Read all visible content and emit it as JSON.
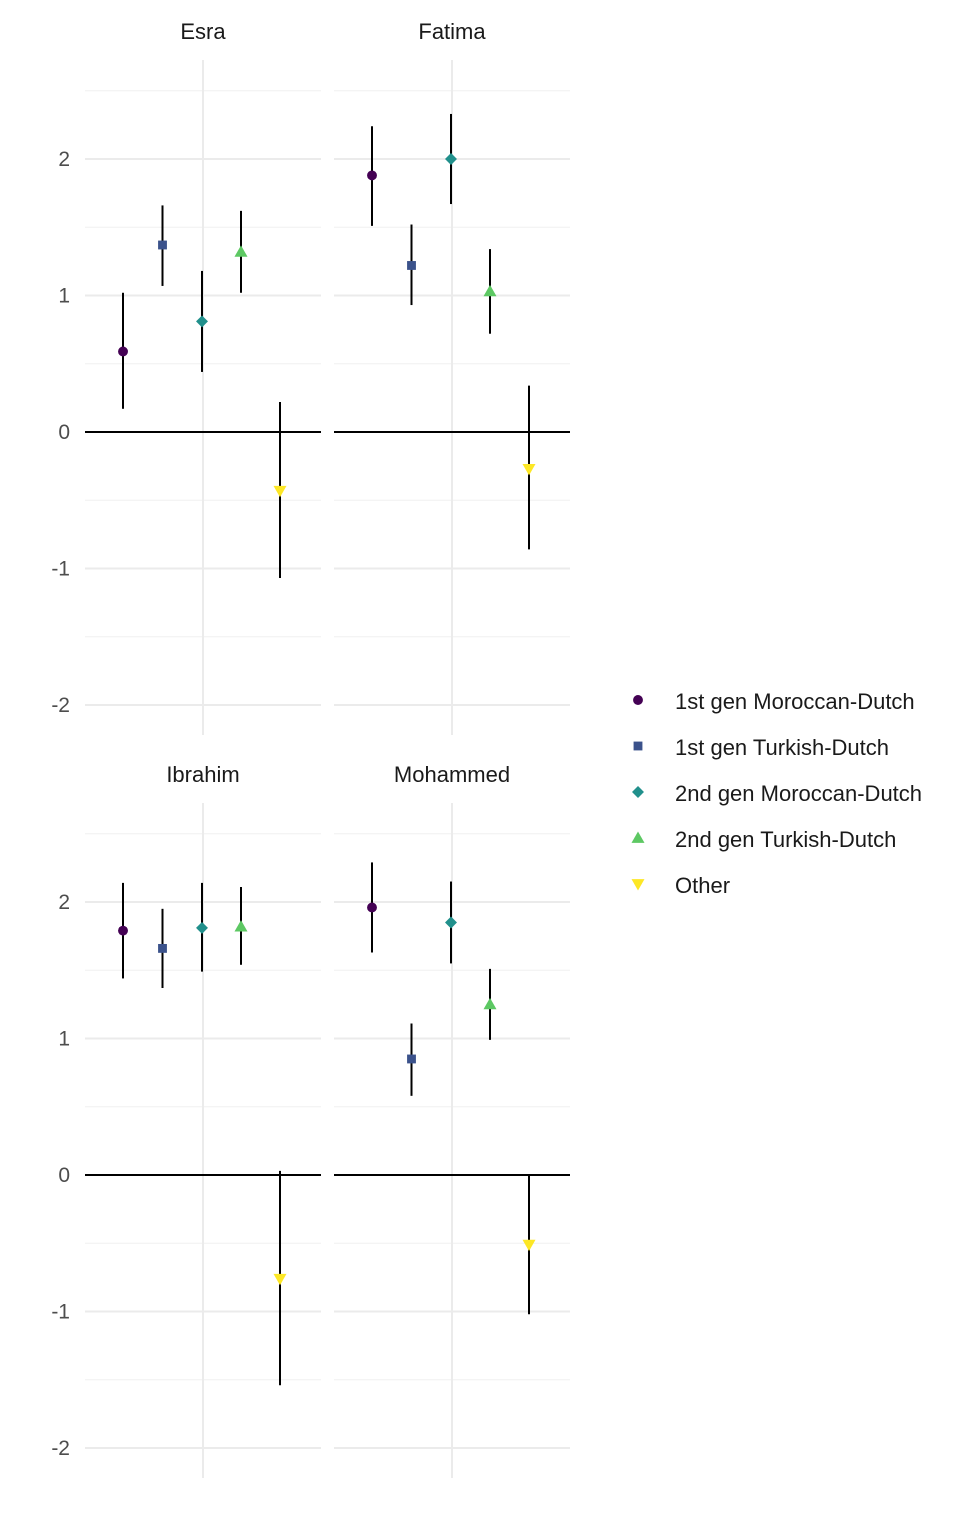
{
  "chart_data": {
    "type": "scatter",
    "subtype": "point-range faceted",
    "ylim": [
      -2.2,
      2.5
    ],
    "yticks": [
      2,
      1,
      0,
      -1,
      -2
    ],
    "ytick_labels": [
      "2",
      "1",
      "0",
      "-1",
      "-2"
    ],
    "reference_line": 0,
    "grid": true,
    "legend_position": "right",
    "groups": [
      {
        "name": "1st gen Moroccan-Dutch",
        "color": "#440154",
        "shape": "circle"
      },
      {
        "name": "1st gen Turkish-Dutch",
        "color": "#3B528B",
        "shape": "square"
      },
      {
        "name": "2nd gen Moroccan-Dutch",
        "color": "#21908C",
        "shape": "diamond"
      },
      {
        "name": "2nd gen Turkish-Dutch",
        "color": "#5DC863",
        "shape": "triangle-up"
      },
      {
        "name": "Other",
        "color": "#FDE725",
        "shape": "triangle-down"
      }
    ],
    "panels": [
      {
        "title": "Esra",
        "points": [
          {
            "group": "1st gen Moroccan-Dutch",
            "estimate": 0.59,
            "lower": 0.17,
            "upper": 1.02
          },
          {
            "group": "1st gen Turkish-Dutch",
            "estimate": 1.37,
            "lower": 1.07,
            "upper": 1.66
          },
          {
            "group": "2nd gen Moroccan-Dutch",
            "estimate": 0.81,
            "lower": 0.44,
            "upper": 1.18
          },
          {
            "group": "2nd gen Turkish-Dutch",
            "estimate": 1.32,
            "lower": 1.02,
            "upper": 1.62
          },
          {
            "group": "Other",
            "estimate": -0.43,
            "lower": -1.07,
            "upper": 0.22
          }
        ]
      },
      {
        "title": "Fatima",
        "points": [
          {
            "group": "1st gen Moroccan-Dutch",
            "estimate": 1.88,
            "lower": 1.51,
            "upper": 2.24
          },
          {
            "group": "1st gen Turkish-Dutch",
            "estimate": 1.22,
            "lower": 0.93,
            "upper": 1.52
          },
          {
            "group": "2nd gen Moroccan-Dutch",
            "estimate": 2.0,
            "lower": 1.67,
            "upper": 2.33
          },
          {
            "group": "2nd gen Turkish-Dutch",
            "estimate": 1.03,
            "lower": 0.72,
            "upper": 1.34
          },
          {
            "group": "Other",
            "estimate": -0.27,
            "lower": -0.86,
            "upper": 0.34
          }
        ]
      },
      {
        "title": "Ibrahim",
        "points": [
          {
            "group": "1st gen Moroccan-Dutch",
            "estimate": 1.79,
            "lower": 1.44,
            "upper": 2.14
          },
          {
            "group": "1st gen Turkish-Dutch",
            "estimate": 1.66,
            "lower": 1.37,
            "upper": 1.95
          },
          {
            "group": "2nd gen Moroccan-Dutch",
            "estimate": 1.81,
            "lower": 1.49,
            "upper": 2.14
          },
          {
            "group": "2nd gen Turkish-Dutch",
            "estimate": 1.82,
            "lower": 1.54,
            "upper": 2.11
          },
          {
            "group": "Other",
            "estimate": -0.76,
            "lower": -1.54,
            "upper": 0.03
          }
        ]
      },
      {
        "title": "Mohammed",
        "points": [
          {
            "group": "1st gen Moroccan-Dutch",
            "estimate": 1.96,
            "lower": 1.63,
            "upper": 2.29
          },
          {
            "group": "1st gen Turkish-Dutch",
            "estimate": 0.85,
            "lower": 0.58,
            "upper": 1.11
          },
          {
            "group": "2nd gen Moroccan-Dutch",
            "estimate": 1.85,
            "lower": 1.55,
            "upper": 2.15
          },
          {
            "group": "2nd gen Turkish-Dutch",
            "estimate": 1.25,
            "lower": 0.99,
            "upper": 1.51
          },
          {
            "group": "Other",
            "estimate": -0.51,
            "lower": -1.02,
            "upper": 0.0
          }
        ]
      }
    ]
  }
}
